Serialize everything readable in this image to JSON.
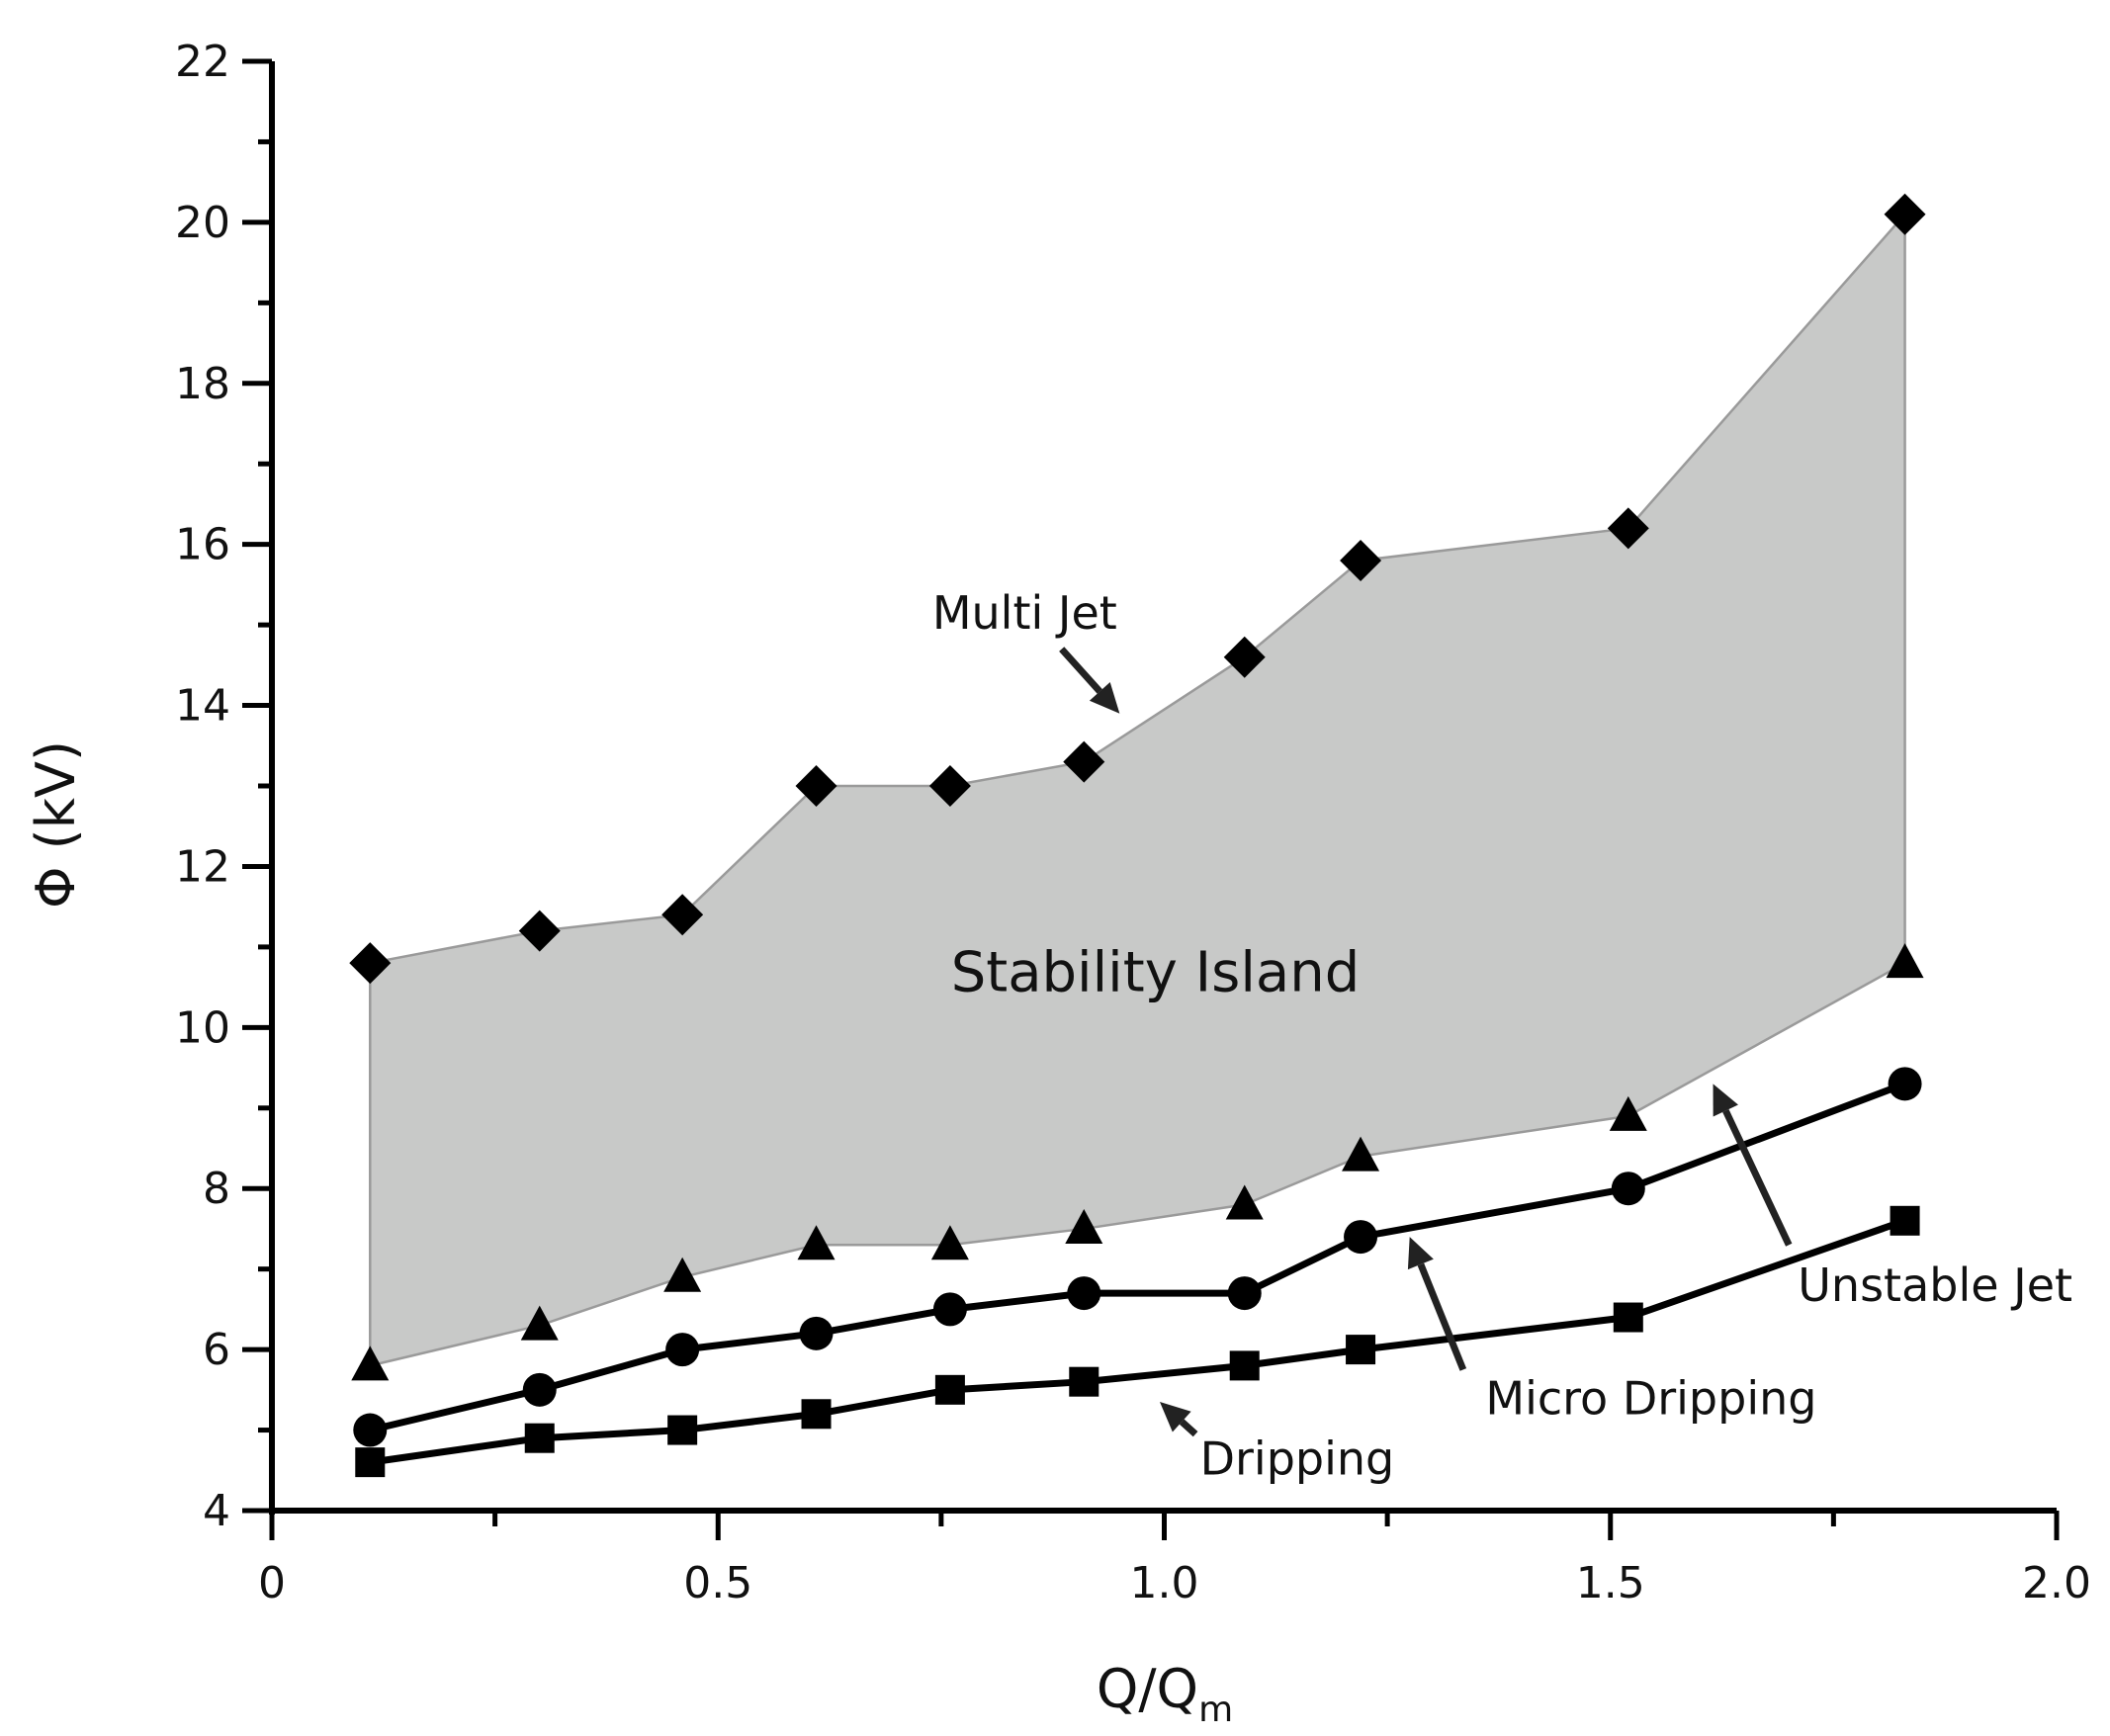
{
  "chart_data": {
    "type": "line",
    "title": "",
    "xlabel": "Q/Q",
    "xlabel_sub": "m",
    "ylabel": "Φ (kV)",
    "xlim": [
      0,
      2.0
    ],
    "ylim": [
      4,
      22
    ],
    "xticks": [
      0,
      0.5,
      1.0,
      1.5,
      2.0
    ],
    "xtick_labels": [
      "0",
      "0.5",
      "1.0",
      "1.5",
      "2.0"
    ],
    "yticks": [
      4,
      6,
      8,
      10,
      12,
      14,
      16,
      18,
      20,
      22
    ],
    "ytick_labels": [
      "4",
      "6",
      "8",
      "10",
      "12",
      "14",
      "16",
      "18",
      "20",
      "22"
    ],
    "grid": false,
    "x": [
      0.11,
      0.3,
      0.46,
      0.61,
      0.76,
      0.91,
      1.09,
      1.22,
      1.52,
      1.83
    ],
    "series": [
      {
        "name": "Dripping",
        "marker": "square",
        "line": true,
        "values": [
          4.6,
          4.9,
          5.0,
          5.2,
          5.5,
          5.6,
          5.8,
          6.0,
          6.4,
          7.6
        ]
      },
      {
        "name": "Micro Dripping",
        "marker": "circle",
        "line": true,
        "values": [
          5.0,
          5.5,
          6.0,
          6.2,
          6.5,
          6.7,
          6.7,
          7.4,
          8.0,
          9.3
        ]
      },
      {
        "name": "Unstable Jet",
        "marker": "triangle",
        "line": false,
        "values": [
          5.8,
          6.3,
          6.9,
          7.3,
          7.3,
          7.5,
          7.8,
          8.4,
          8.9,
          10.8
        ]
      },
      {
        "name": "Multi Jet",
        "marker": "diamond",
        "line": false,
        "values": [
          10.8,
          11.2,
          11.4,
          13.0,
          13.0,
          13.3,
          14.6,
          15.8,
          16.2,
          20.1
        ]
      }
    ],
    "shaded_region": {
      "label": "Stability Island",
      "lower": "Unstable Jet",
      "upper": "Multi Jet",
      "color": "#c8c9c8"
    },
    "annotations": [
      {
        "text": "Multi Jet"
      },
      {
        "text": "Stability Island"
      },
      {
        "text": "Unstable Jet"
      },
      {
        "text": "Micro Dripping"
      },
      {
        "text": "Dripping"
      }
    ]
  }
}
